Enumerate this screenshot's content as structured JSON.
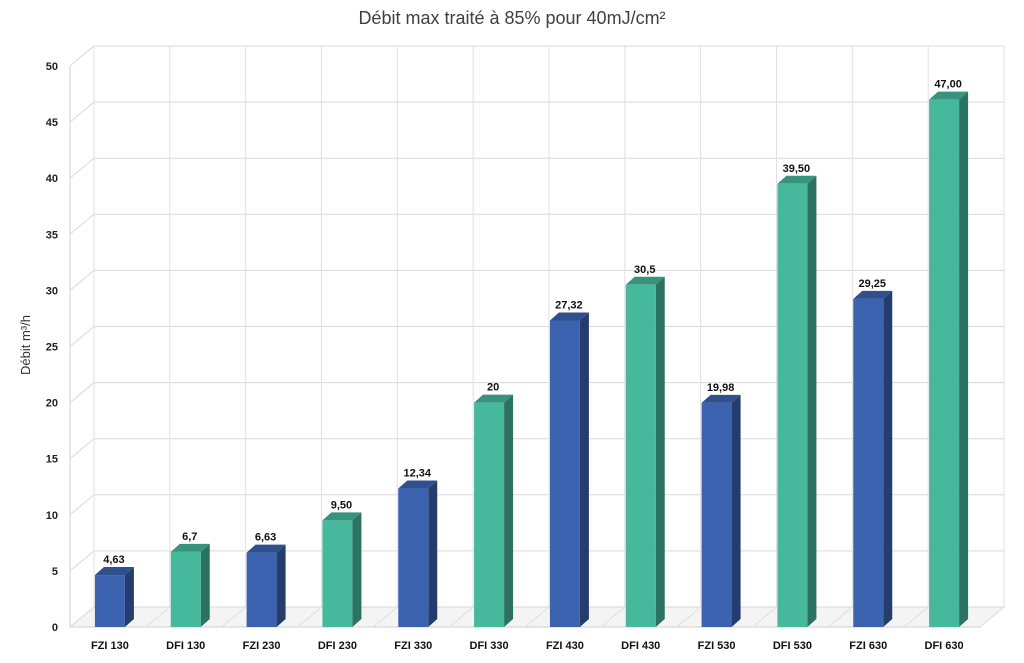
{
  "chart_data": {
    "type": "bar",
    "title": "Débit max traité à 85% pour 40mJ/cm²",
    "xlabel": "",
    "ylabel": "Débit m³/h",
    "ylim": [
      0,
      50
    ],
    "yticks": [
      0,
      5,
      10,
      15,
      20,
      25,
      30,
      35,
      40,
      45,
      50
    ],
    "grid": true,
    "categories": [
      "FZI 130",
      "DFI 130",
      "FZI 230",
      "DFI 230",
      "FZI 330",
      "DFI 330",
      "FZI 430",
      "DFI 430",
      "FZI 530",
      "DFI 530",
      "FZI 630",
      "DFI 630"
    ],
    "values": [
      4.63,
      6.7,
      6.63,
      9.5,
      12.34,
      20,
      27.32,
      30.5,
      19.98,
      39.5,
      29.25,
      47.0
    ],
    "value_labels": [
      "4,63",
      "6,7",
      "6,63",
      "9,50",
      "12,34",
      "20",
      "27,32",
      "30,5",
      "19,98",
      "39,50",
      "29,25",
      "47,00"
    ],
    "colors": {
      "FZI": "#3c63b0",
      "DFI": "#46b89c"
    },
    "bar_colors": [
      "#3c63b0",
      "#46b89c",
      "#3c63b0",
      "#46b89c",
      "#3c63b0",
      "#46b89c",
      "#3c63b0",
      "#46b89c",
      "#3c63b0",
      "#46b89c",
      "#3c63b0",
      "#46b89c"
    ]
  }
}
